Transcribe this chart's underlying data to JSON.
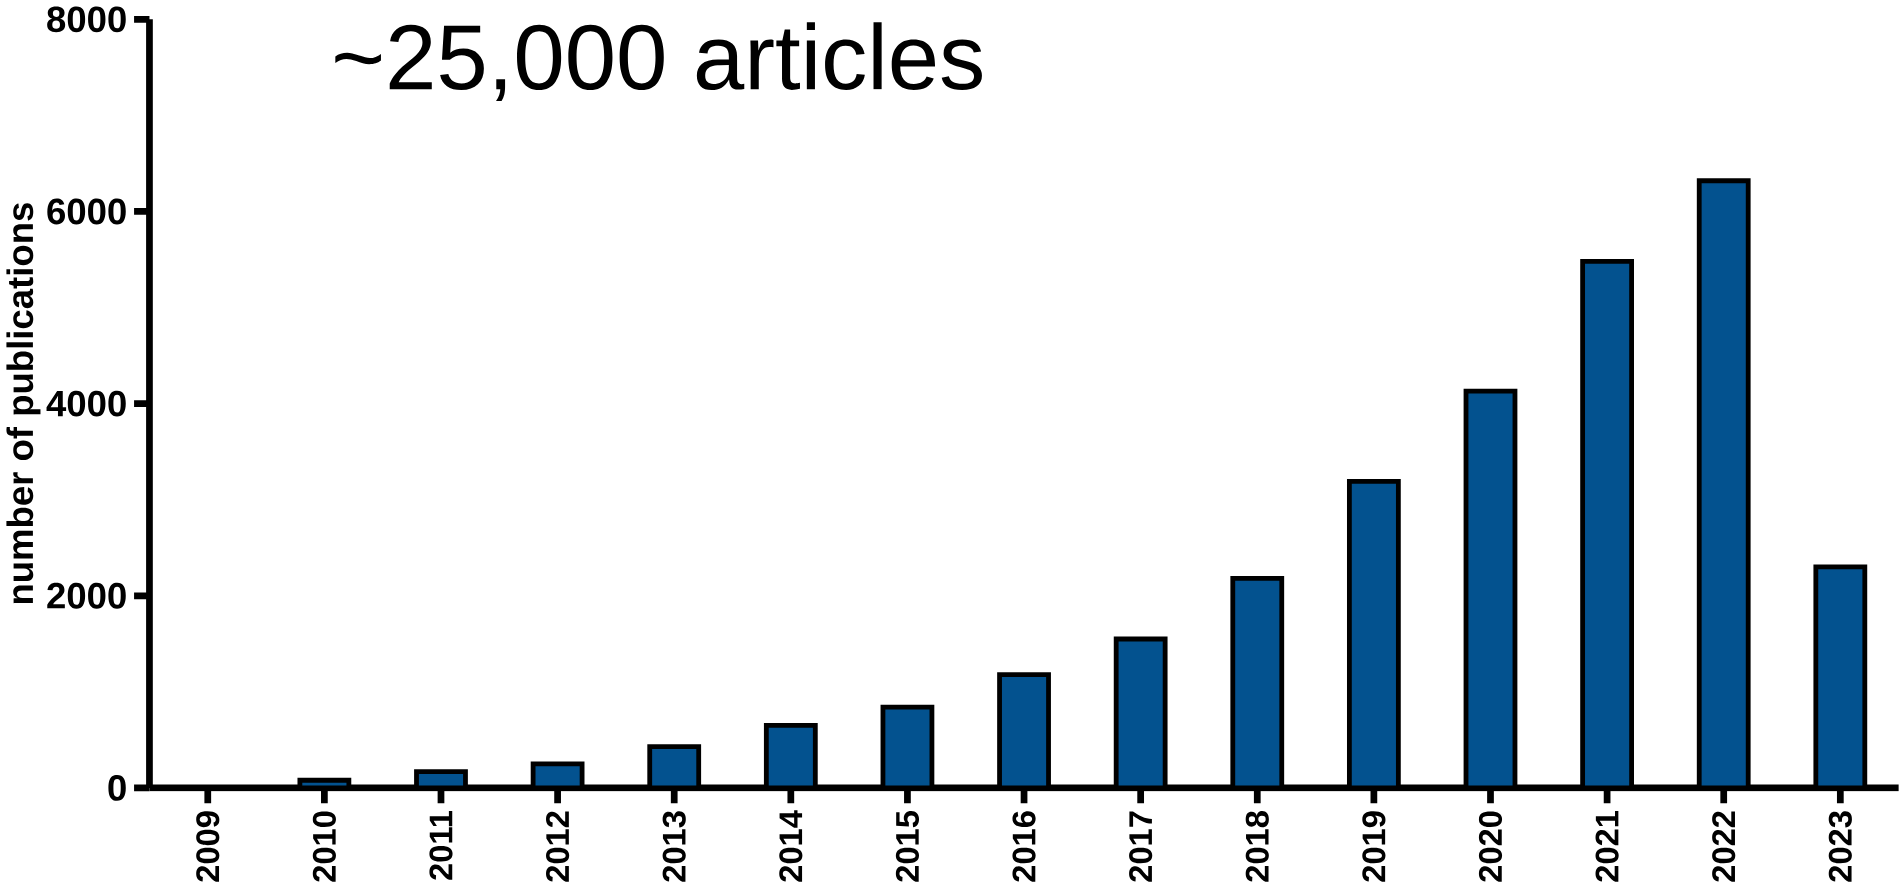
{
  "chart_data": {
    "type": "bar",
    "title": "~25,000 articles",
    "ylabel": "number of publications",
    "categories": [
      "2009",
      "2010",
      "2011",
      "2012",
      "2013",
      "2014",
      "2015",
      "2016",
      "2017",
      "2018",
      "2019",
      "2020",
      "2021",
      "2022",
      "2023"
    ],
    "values": [
      null,
      80,
      170,
      250,
      430,
      650,
      840,
      1180,
      1550,
      2180,
      3190,
      4130,
      5480,
      6320,
      2300
    ],
    "color": "#03528f",
    "ylim": [
      0,
      8000
    ],
    "yticks": [
      0,
      2000,
      4000,
      6000,
      8000
    ],
    "grid": false
  }
}
